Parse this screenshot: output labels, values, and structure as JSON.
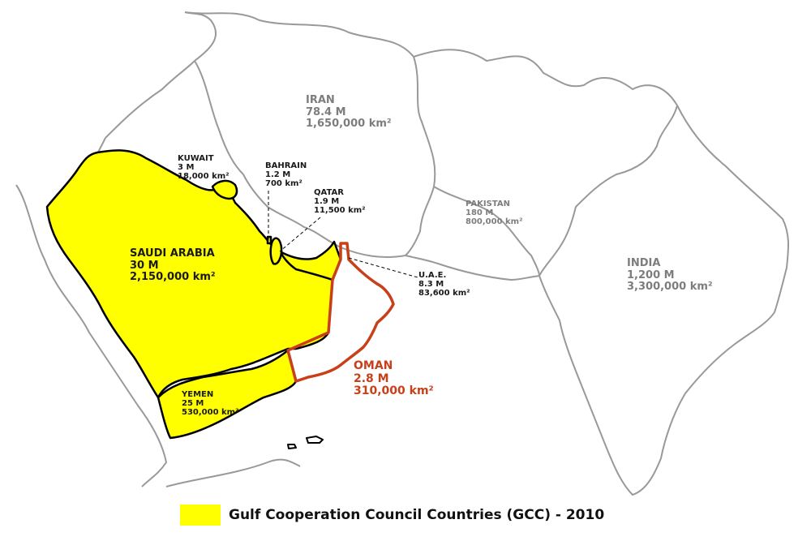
{
  "colors": {
    "gcc_fill": "#ffff00",
    "oman_outline": "#c8401a",
    "border": "#000000",
    "other_border": "#999999"
  },
  "countries": {
    "iran": {
      "name": "IRAN",
      "pop": "78.4 M",
      "area": "1,650,000 km²"
    },
    "pakistan": {
      "name": "PAKISTAN",
      "pop": "180 M",
      "area": "800,000 km²"
    },
    "india": {
      "name": "INDIA",
      "pop": "1,200 M",
      "area": "3,300,000 km²"
    },
    "saudi": {
      "name": "SAUDI ARABIA",
      "pop": "30 M",
      "area": "2,150,000 km²"
    },
    "kuwait": {
      "name": "KUWAIT",
      "pop": "3 M",
      "area": "18,000 km²"
    },
    "bahrain": {
      "name": "BAHRAIN",
      "pop": "1.2 M",
      "area": "700 km²"
    },
    "qatar": {
      "name": "QATAR",
      "pop": "1.9 M",
      "area": "11,500 km²"
    },
    "uae": {
      "name": "U.A.E.",
      "pop": "8.3 M",
      "area": "83,600 km²"
    },
    "oman": {
      "name": "OMAN",
      "pop": "2.8 M",
      "area": "310,000 km²"
    },
    "yemen": {
      "name": "YEMEN",
      "pop": "25 M",
      "area": "530,000 km²"
    }
  },
  "legend": {
    "label": "Gulf Cooperation Council Countries (GCC) - 2010"
  }
}
